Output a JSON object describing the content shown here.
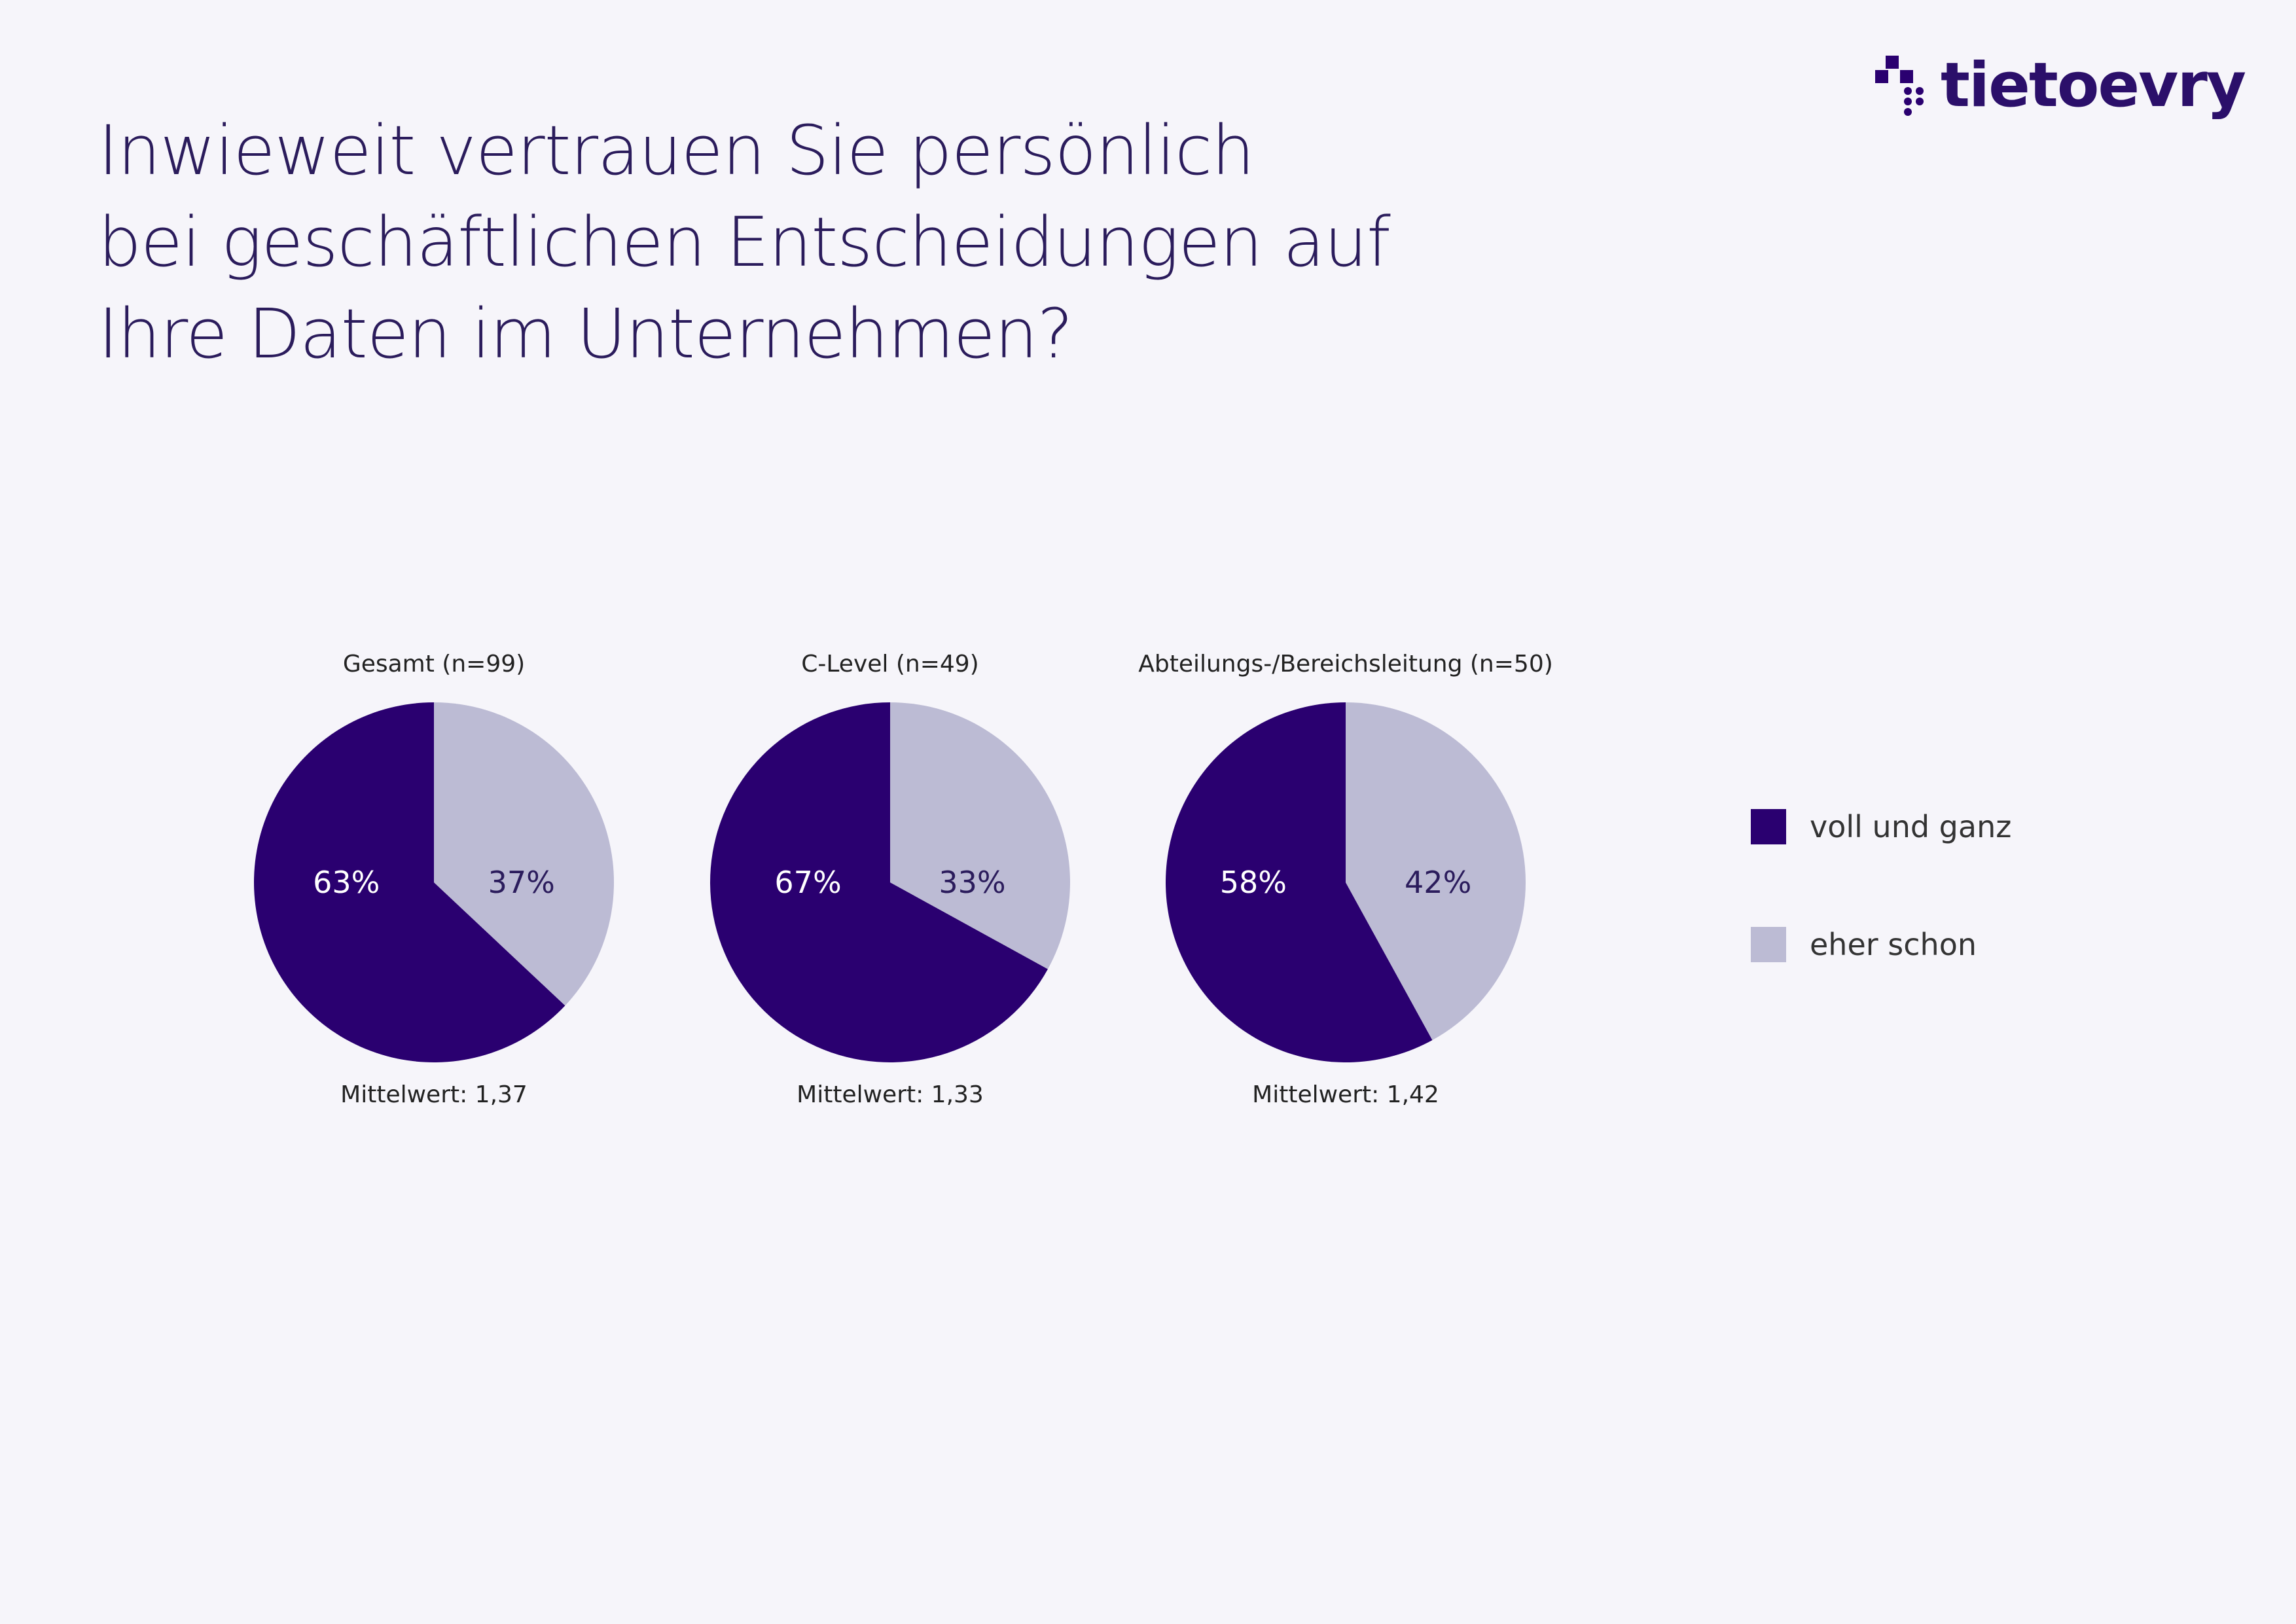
{
  "title_lines": [
    "Inwieweit vertrauen Sie persönlich",
    "bei geschäftlichen Entscheidungen auf",
    "Ihre Daten im Unternehmen?"
  ],
  "logo": {
    "text": "tietoevry",
    "icon": "tietoevry-logo-icon"
  },
  "colors": {
    "dark": "#2a0070",
    "light": "#bcbbd4",
    "text_dark": "#2b1c5c"
  },
  "chart_data": [
    {
      "type": "pie",
      "title": "Gesamt (n=99)",
      "categories": [
        "voll und ganz",
        "eher schon"
      ],
      "values": [
        63,
        37
      ],
      "labels": [
        "63%",
        "37%"
      ],
      "mean": "Mittelwert: 1,37"
    },
    {
      "type": "pie",
      "title": "C-Level (n=49)",
      "categories": [
        "voll und ganz",
        "eher schon"
      ],
      "values": [
        67,
        33
      ],
      "labels": [
        "67%",
        "33%"
      ],
      "mean": "Mittelwert: 1,33"
    },
    {
      "type": "pie",
      "title": "Abteilungs-/Bereichsleitung (n=50)",
      "categories": [
        "voll und ganz",
        "eher schon"
      ],
      "values": [
        58,
        42
      ],
      "labels": [
        "58%",
        "42%"
      ],
      "mean": "Mittelwert: 1,42"
    }
  ],
  "legend": [
    {
      "label": "voll und ganz",
      "color": "#2a0070"
    },
    {
      "label": "eher schon",
      "color": "#bcbbd4"
    }
  ]
}
